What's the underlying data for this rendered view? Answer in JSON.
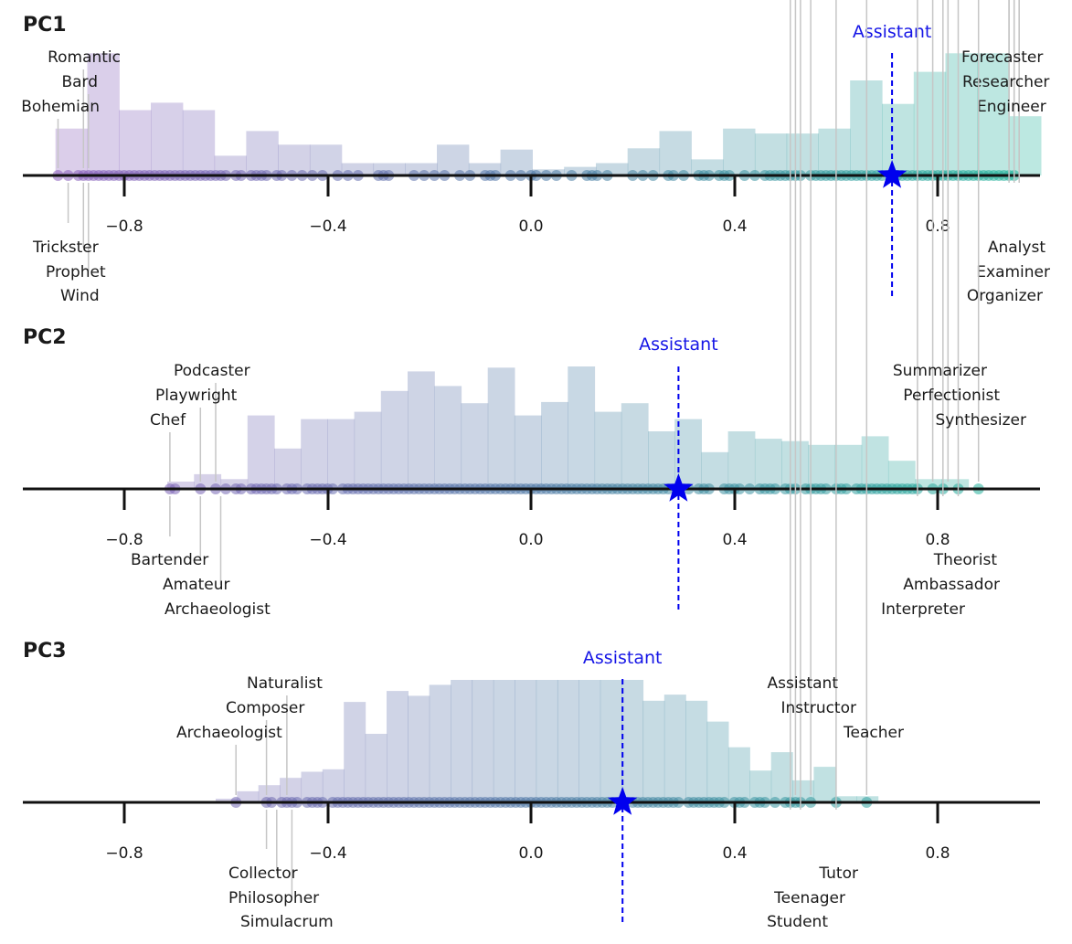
{
  "chart_data": [
    {
      "type": "histogram-strip",
      "title": "PC1",
      "xlim": [
        -1.0,
        1.0
      ],
      "ticks": [
        -0.8,
        -0.4,
        0.0,
        0.4,
        0.8
      ],
      "tick_labels": [
        "−0.8",
        "−0.4",
        "0.0",
        "0.4",
        "0.8"
      ],
      "assistant": {
        "label": "Assistant",
        "value": 0.71
      },
      "hist_start": -0.935,
      "hist_bin": 0.0625,
      "hist_heights": [
        0.38,
        0.99,
        0.53,
        0.59,
        0.53,
        0.16,
        0.36,
        0.25,
        0.25,
        0.1,
        0.1,
        0.1,
        0.25,
        0.1,
        0.21,
        0.05,
        0.07,
        0.1,
        0.22,
        0.36,
        0.13,
        0.38,
        0.34,
        0.34,
        0.38,
        0.77,
        0.58,
        0.84,
        0.99,
        0.99,
        0.48
      ],
      "points": [
        -0.93,
        -0.91,
        -0.89,
        -0.88,
        -0.87,
        -0.86,
        -0.85,
        -0.84,
        -0.83,
        -0.82,
        -0.81,
        -0.8,
        -0.79,
        -0.78,
        -0.77,
        -0.76,
        -0.75,
        -0.74,
        -0.73,
        -0.72,
        -0.71,
        -0.7,
        -0.69,
        -0.68,
        -0.67,
        -0.66,
        -0.65,
        -0.64,
        -0.63,
        -0.62,
        -0.61,
        -0.6,
        -0.58,
        -0.57,
        -0.55,
        -0.54,
        -0.53,
        -0.52,
        -0.5,
        -0.49,
        -0.47,
        -0.45,
        -0.43,
        -0.41,
        -0.38,
        -0.36,
        -0.34,
        -0.3,
        -0.29,
        -0.28,
        -0.23,
        -0.21,
        -0.19,
        -0.17,
        -0.14,
        -0.12,
        -0.09,
        -0.08,
        -0.07,
        -0.04,
        -0.02,
        0.0,
        0.01,
        0.03,
        0.05,
        0.08,
        0.11,
        0.12,
        0.13,
        0.15,
        0.2,
        0.22,
        0.24,
        0.27,
        0.28,
        0.3,
        0.33,
        0.34,
        0.35,
        0.37,
        0.38,
        0.39,
        0.42,
        0.44,
        0.46,
        0.47,
        0.48,
        0.49,
        0.5,
        0.51,
        0.52,
        0.53,
        0.55,
        0.56,
        0.57,
        0.58,
        0.59,
        0.6,
        0.61,
        0.62,
        0.63,
        0.64,
        0.65,
        0.66,
        0.67,
        0.68,
        0.69,
        0.72,
        0.73,
        0.74,
        0.75,
        0.76,
        0.77,
        0.78,
        0.79,
        0.8,
        0.81,
        0.82,
        0.83,
        0.84,
        0.85,
        0.86,
        0.87,
        0.88,
        0.89,
        0.9,
        0.91,
        0.92,
        0.93,
        0.94,
        0.95
      ],
      "top_labels": [
        {
          "text": "Romantic",
          "value": -0.88,
          "row": 0,
          "side": "left"
        },
        {
          "text": "Bard",
          "value": -0.87,
          "row": 1,
          "side": "left"
        },
        {
          "text": "Bohemian",
          "value": -0.93,
          "row": 2,
          "side": "left"
        },
        {
          "text": "Forecaster",
          "value": 0.94,
          "row": 0,
          "side": "right"
        },
        {
          "text": "Researcher",
          "value": 0.95,
          "row": 1,
          "side": "right"
        },
        {
          "text": "Engineer",
          "value": 0.96,
          "row": 2,
          "side": "right"
        }
      ],
      "bottom_labels": [
        {
          "text": "Trickster",
          "value": -0.91,
          "row": 0,
          "side": "left"
        },
        {
          "text": "Prophet",
          "value": -0.88,
          "row": 1,
          "side": "left"
        },
        {
          "text": "Wind",
          "value": -0.87,
          "row": 2,
          "side": "left"
        },
        {
          "text": "Analyst",
          "value": 0.96,
          "row": 0,
          "side": "right"
        },
        {
          "text": "Examiner",
          "value": 0.95,
          "row": 1,
          "side": "right"
        },
        {
          "text": "Organizer",
          "value": 0.94,
          "row": 2,
          "side": "right"
        }
      ]
    },
    {
      "type": "histogram-strip",
      "title": "PC2",
      "xlim": [
        -1.0,
        1.0
      ],
      "ticks": [
        -0.8,
        -0.4,
        0.0,
        0.4,
        0.8
      ],
      "tick_labels": [
        "−0.8",
        "−0.4",
        "0.0",
        "0.4",
        "0.8"
      ],
      "assistant": {
        "label": "Assistant",
        "value": 0.29
      },
      "hist_start": -0.715,
      "hist_bin": 0.0525,
      "hist_heights": [
        0.06,
        0.12,
        0.08,
        0.6,
        0.33,
        0.57,
        0.57,
        0.63,
        0.8,
        0.96,
        0.84,
        0.7,
        0.99,
        0.6,
        0.71,
        1.0,
        0.63,
        0.7,
        0.47,
        0.57,
        0.3,
        0.47,
        0.41,
        0.39,
        0.36,
        0.36,
        0.43,
        0.23,
        0.08,
        0.08
      ],
      "points": [
        -0.71,
        -0.7,
        -0.65,
        -0.62,
        -0.6,
        -0.58,
        -0.57,
        -0.55,
        -0.54,
        -0.53,
        -0.52,
        -0.51,
        -0.5,
        -0.48,
        -0.47,
        -0.46,
        -0.44,
        -0.43,
        -0.42,
        -0.41,
        -0.4,
        -0.39,
        -0.37,
        -0.36,
        -0.35,
        -0.34,
        -0.33,
        -0.32,
        -0.31,
        -0.3,
        -0.29,
        -0.28,
        -0.27,
        -0.26,
        -0.25,
        -0.24,
        -0.23,
        -0.22,
        -0.21,
        -0.2,
        -0.19,
        -0.18,
        -0.17,
        -0.16,
        -0.15,
        -0.14,
        -0.13,
        -0.12,
        -0.11,
        -0.1,
        -0.09,
        -0.08,
        -0.07,
        -0.06,
        -0.05,
        -0.04,
        -0.03,
        -0.02,
        -0.01,
        0.0,
        0.01,
        0.02,
        0.03,
        0.04,
        0.05,
        0.06,
        0.07,
        0.08,
        0.09,
        0.1,
        0.11,
        0.12,
        0.13,
        0.14,
        0.15,
        0.16,
        0.17,
        0.18,
        0.19,
        0.2,
        0.21,
        0.22,
        0.23,
        0.24,
        0.25,
        0.26,
        0.27,
        0.31,
        0.33,
        0.34,
        0.35,
        0.38,
        0.39,
        0.4,
        0.41,
        0.43,
        0.45,
        0.46,
        0.47,
        0.48,
        0.5,
        0.51,
        0.52,
        0.54,
        0.55,
        0.56,
        0.57,
        0.58,
        0.6,
        0.61,
        0.62,
        0.64,
        0.65,
        0.66,
        0.67,
        0.68,
        0.69,
        0.7,
        0.71,
        0.72,
        0.73,
        0.74,
        0.75,
        0.76,
        0.79,
        0.81,
        0.84,
        0.88
      ],
      "top_labels": [
        {
          "text": "Podcaster",
          "value": -0.62,
          "row": 0,
          "side": "left"
        },
        {
          "text": "Playwright",
          "value": -0.65,
          "row": 1,
          "side": "left"
        },
        {
          "text": "Chef",
          "value": -0.71,
          "row": 2,
          "side": "left"
        },
        {
          "text": "Summarizer",
          "value": 0.79,
          "row": 0,
          "side": "right"
        },
        {
          "text": "Perfectionist",
          "value": 0.82,
          "row": 1,
          "side": "right"
        },
        {
          "text": "Synthesizer",
          "value": 0.88,
          "row": 2,
          "side": "right"
        }
      ],
      "bottom_labels": [
        {
          "text": "Bartender",
          "value": -0.71,
          "row": 0,
          "side": "left"
        },
        {
          "text": "Amateur",
          "value": -0.65,
          "row": 1,
          "side": "left"
        },
        {
          "text": "Archaeologist",
          "value": -0.61,
          "row": 2,
          "side": "left"
        },
        {
          "text": "Theorist",
          "value": 0.84,
          "row": 0,
          "side": "right"
        },
        {
          "text": "Ambassador",
          "value": 0.81,
          "row": 1,
          "side": "right"
        },
        {
          "text": "Interpreter",
          "value": 0.76,
          "row": 2,
          "side": "right"
        }
      ]
    },
    {
      "type": "histogram-strip",
      "title": "PC3",
      "xlim": [
        -1.0,
        1.0
      ],
      "ticks": [
        -0.8,
        -0.4,
        0.0,
        0.4,
        0.8
      ],
      "tick_labels": [
        "−0.8",
        "−0.4",
        "0.0",
        "0.4",
        "0.8"
      ],
      "assistant": {
        "label": "Assistant",
        "value": 0.18
      },
      "hist_start": -0.62,
      "hist_bin": 0.042,
      "hist_heights": [
        0.03,
        0.09,
        0.14,
        0.2,
        0.25,
        0.27,
        0.82,
        0.56,
        0.91,
        0.87,
        0.96,
        1.0,
        1.0,
        1.0,
        1.0,
        1.0,
        1.0,
        1.0,
        1.0,
        1.0,
        0.83,
        0.88,
        0.83,
        0.66,
        0.45,
        0.26,
        0.41,
        0.18,
        0.29,
        0.05,
        0.05
      ],
      "points": [
        -0.58,
        -0.52,
        -0.51,
        -0.49,
        -0.48,
        -0.47,
        -0.46,
        -0.44,
        -0.43,
        -0.42,
        -0.41,
        -0.39,
        -0.38,
        -0.37,
        -0.36,
        -0.35,
        -0.34,
        -0.33,
        -0.32,
        -0.31,
        -0.3,
        -0.29,
        -0.28,
        -0.27,
        -0.26,
        -0.25,
        -0.24,
        -0.23,
        -0.22,
        -0.21,
        -0.2,
        -0.19,
        -0.18,
        -0.17,
        -0.16,
        -0.15,
        -0.14,
        -0.13,
        -0.12,
        -0.11,
        -0.1,
        -0.09,
        -0.08,
        -0.07,
        -0.06,
        -0.05,
        -0.04,
        -0.03,
        -0.02,
        -0.01,
        0.0,
        0.01,
        0.02,
        0.03,
        0.04,
        0.05,
        0.06,
        0.07,
        0.08,
        0.09,
        0.1,
        0.11,
        0.12,
        0.13,
        0.14,
        0.15,
        0.16,
        0.2,
        0.21,
        0.22,
        0.23,
        0.24,
        0.25,
        0.26,
        0.27,
        0.28,
        0.29,
        0.31,
        0.32,
        0.33,
        0.34,
        0.35,
        0.36,
        0.37,
        0.38,
        0.4,
        0.41,
        0.42,
        0.44,
        0.45,
        0.46,
        0.48,
        0.5,
        0.51,
        0.52,
        0.53,
        0.55,
        0.6,
        0.66
      ],
      "top_labels": [
        {
          "text": "Naturalist",
          "value": -0.48,
          "row": 0,
          "side": "left"
        },
        {
          "text": "Composer",
          "value": -0.52,
          "row": 1,
          "side": "left"
        },
        {
          "text": "Archaeologist",
          "value": -0.58,
          "row": 2,
          "side": "left"
        },
        {
          "text": "Assistant",
          "value": 0.52,
          "row": 0,
          "side": "right"
        },
        {
          "text": "Instructor",
          "value": 0.55,
          "row": 1,
          "side": "right"
        },
        {
          "text": "Teacher",
          "value": 0.66,
          "row": 2,
          "side": "right"
        }
      ],
      "bottom_labels": [
        {
          "text": "Collector",
          "value": -0.52,
          "row": 0,
          "side": "left"
        },
        {
          "text": "Philosopher",
          "value": -0.5,
          "row": 1,
          "side": "left"
        },
        {
          "text": "Simulacrum",
          "value": -0.47,
          "row": 2,
          "side": "left"
        },
        {
          "text": "Tutor",
          "value": 0.6,
          "row": 0,
          "side": "right"
        },
        {
          "text": "Teenager",
          "value": 0.53,
          "row": 1,
          "side": "right"
        },
        {
          "text": "Student",
          "value": 0.51,
          "row": 2,
          "side": "right"
        }
      ]
    }
  ],
  "colors": {
    "purple": "#8e5bbd",
    "teal": "#1fb59a",
    "assistant": "#0000ee",
    "assistant_text": "#1515e6",
    "axis": "#111111",
    "leader": "#c8c8c8"
  }
}
